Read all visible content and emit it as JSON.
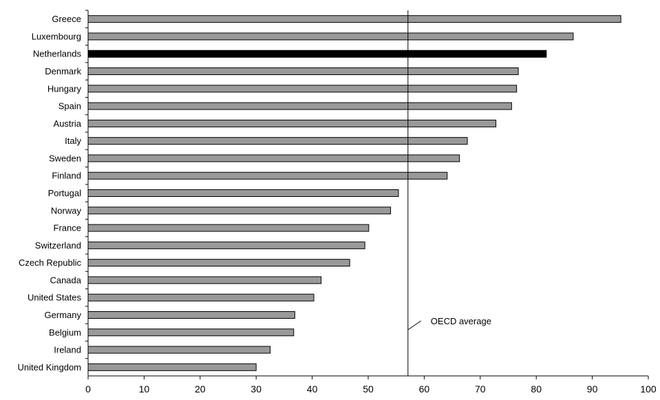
{
  "chart_data": {
    "type": "bar",
    "orientation": "horizontal",
    "categories": [
      "Greece",
      "Luxembourg",
      "Netherlands",
      "Denmark",
      "Hungary",
      "Spain",
      "Austria",
      "Italy",
      "Sweden",
      "Finland",
      "Portugal",
      "Norway",
      "France",
      "Switzerland",
      "Czech Republic",
      "Canada",
      "United States",
      "Germany",
      "Belgium",
      "Ireland",
      "United Kingdom"
    ],
    "values": [
      95.1,
      86.6,
      81.8,
      76.8,
      76.5,
      75.6,
      72.8,
      67.7,
      66.3,
      64.1,
      55.4,
      54.0,
      50.1,
      49.4,
      46.7,
      41.6,
      40.3,
      36.9,
      36.7,
      32.5,
      30.0
    ],
    "highlight": "Netherlands",
    "xlim": [
      0,
      100
    ],
    "xticks": [
      0,
      10,
      20,
      30,
      40,
      50,
      60,
      70,
      80,
      90,
      100
    ],
    "reference_line": {
      "label": "OECD average",
      "value": 57.1
    },
    "title": "",
    "xlabel": "",
    "ylabel": "",
    "grid": false,
    "colors": {
      "bar": "#999999",
      "highlight": "#000000",
      "outline": "#000000"
    }
  }
}
